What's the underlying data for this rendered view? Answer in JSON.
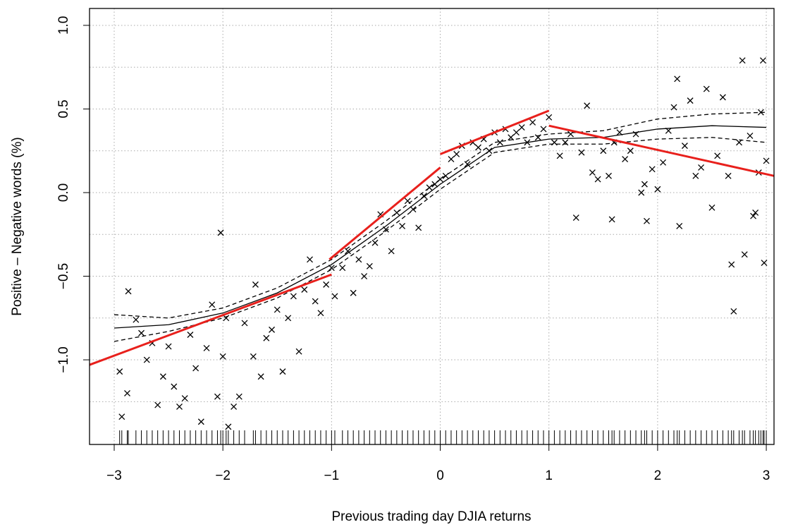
{
  "chart_data": {
    "type": "scatter",
    "xlabel": "Previous trading day DJIA returns",
    "ylabel": "Positive – Negative words (%)",
    "xlim": [
      -3.227,
      3.071
    ],
    "ylim": [
      -1.506,
      1.101
    ],
    "xticks": [
      {
        "value": -3,
        "label": "−3"
      },
      {
        "value": -2,
        "label": "−2"
      },
      {
        "value": -1,
        "label": "−1"
      },
      0,
      1,
      2,
      3
    ],
    "yticks": [
      {
        "value": -1.0,
        "label": "−1.0"
      },
      {
        "value": -0.5,
        "label": "−0.5"
      },
      {
        "value": 0,
        "label": "0.0"
      },
      0.5,
      {
        "value": 1.0,
        "label": "1.0"
      }
    ],
    "ygrid": [
      -1.25,
      -1.0,
      -0.75,
      -0.5,
      -0.25,
      0,
      0.25,
      0.5,
      0.75,
      1.0
    ],
    "grid": true,
    "color": "#000000",
    "x": [
      -2.95,
      -2.93,
      -2.88,
      -2.87,
      -2.8,
      -2.75,
      -2.7,
      -2.65,
      -2.6,
      -2.55,
      -2.5,
      -2.45,
      -2.4,
      -2.35,
      -2.3,
      -2.25,
      -2.2,
      -2.15,
      -2.1,
      -2.05,
      -2.0,
      -1.95,
      -2.02,
      -1.97,
      -1.9,
      -1.85,
      -1.8,
      -1.72,
      -1.7,
      -1.65,
      -1.6,
      -1.55,
      -1.5,
      -1.45,
      -1.4,
      -1.35,
      -1.3,
      -1.25,
      -1.2,
      -1.15,
      -1.1,
      -1.05,
      -1.0,
      -0.97,
      -0.9,
      -0.85,
      -0.8,
      -0.75,
      -0.7,
      -0.65,
      -0.6,
      -0.55,
      -0.5,
      -0.45,
      -0.4,
      -0.35,
      -0.3,
      -0.25,
      -0.2,
      -0.15,
      -0.1,
      -0.05,
      0.0,
      0.05,
      0.1,
      0.15,
      0.2,
      0.25,
      0.3,
      0.35,
      0.4,
      0.45,
      0.5,
      0.55,
      0.6,
      0.65,
      0.7,
      0.75,
      0.8,
      0.85,
      0.9,
      0.95,
      1.0,
      1.05,
      1.1,
      1.15,
      1.2,
      1.25,
      1.3,
      1.35,
      1.4,
      1.45,
      1.5,
      1.55,
      1.58,
      1.6,
      1.65,
      1.7,
      1.75,
      1.8,
      1.85,
      1.88,
      1.9,
      1.95,
      2.0,
      2.05,
      2.1,
      2.15,
      2.18,
      2.2,
      2.25,
      2.3,
      2.35,
      2.4,
      2.45,
      2.5,
      2.55,
      2.6,
      2.65,
      2.68,
      2.7,
      2.75,
      2.78,
      2.8,
      2.85,
      2.88,
      2.9,
      2.95,
      2.97,
      2.98,
      3.0,
      2.93
    ],
    "values": [
      -1.07,
      -1.34,
      -1.2,
      -0.59,
      -0.76,
      -0.84,
      -1.0,
      -0.9,
      -1.27,
      -1.1,
      -0.92,
      -1.16,
      -1.28,
      -1.23,
      -0.85,
      -1.05,
      -1.37,
      -0.93,
      -0.67,
      -1.22,
      -0.98,
      -1.4,
      -0.24,
      -0.75,
      -1.28,
      -1.22,
      -0.78,
      -0.98,
      -0.55,
      -1.1,
      -0.87,
      -0.82,
      -0.7,
      -1.07,
      -0.75,
      -0.62,
      -0.95,
      -0.58,
      -0.4,
      -0.65,
      -0.72,
      -0.55,
      -0.45,
      -0.62,
      -0.45,
      -0.35,
      -0.6,
      -0.4,
      -0.5,
      -0.44,
      -0.3,
      -0.13,
      -0.22,
      -0.35,
      -0.12,
      -0.2,
      -0.05,
      -0.1,
      -0.21,
      -0.02,
      0.03,
      0.05,
      0.08,
      0.1,
      0.2,
      0.23,
      0.28,
      0.17,
      0.3,
      0.27,
      0.32,
      0.25,
      0.36,
      0.3,
      0.38,
      0.33,
      0.36,
      0.39,
      0.3,
      0.42,
      0.33,
      0.38,
      0.45,
      0.3,
      0.22,
      0.3,
      0.35,
      -0.15,
      0.24,
      0.52,
      0.12,
      0.08,
      0.25,
      0.1,
      -0.16,
      0.3,
      0.36,
      0.2,
      0.25,
      0.35,
      0.0,
      0.05,
      -0.17,
      0.14,
      0.02,
      0.18,
      0.37,
      0.51,
      0.68,
      -0.2,
      0.28,
      0.55,
      0.1,
      0.15,
      0.62,
      -0.09,
      0.22,
      0.57,
      0.1,
      -0.43,
      -0.71,
      0.3,
      0.79,
      -0.37,
      0.34,
      -0.14,
      -0.12,
      0.48,
      0.79,
      -0.42,
      0.19,
      0.12
    ],
    "fit": {
      "x": [
        -3,
        -2.5,
        -2,
        -1.5,
        -1,
        -0.5,
        0,
        0.5,
        1,
        1.5,
        2,
        2.5,
        3
      ],
      "values": [
        -0.81,
        -0.79,
        -0.72,
        -0.6,
        -0.43,
        -0.2,
        0.05,
        0.27,
        0.32,
        0.33,
        0.38,
        0.4,
        0.39
      ],
      "upper": [
        -0.73,
        -0.75,
        -0.69,
        -0.57,
        -0.4,
        -0.17,
        0.08,
        0.3,
        0.35,
        0.37,
        0.44,
        0.47,
        0.48
      ],
      "lower": [
        -0.89,
        -0.83,
        -0.75,
        -0.63,
        -0.46,
        -0.23,
        0.02,
        0.24,
        0.29,
        0.29,
        0.32,
        0.33,
        0.3
      ]
    },
    "segments": [
      {
        "color": "#e8201c",
        "x": [
          -3.227,
          -1.0
        ],
        "values": [
          -1.03,
          -0.49
        ]
      },
      {
        "color": "#e8201c",
        "x": [
          -1.02,
          0.0
        ],
        "values": [
          -0.4,
          0.15
        ]
      },
      {
        "color": "#e8201c",
        "x": [
          0.0,
          1.0
        ],
        "values": [
          0.23,
          0.49
        ]
      },
      {
        "color": "#e8201c",
        "x": [
          1.0,
          3.071
        ],
        "values": [
          0.4,
          0.1
        ]
      }
    ]
  }
}
